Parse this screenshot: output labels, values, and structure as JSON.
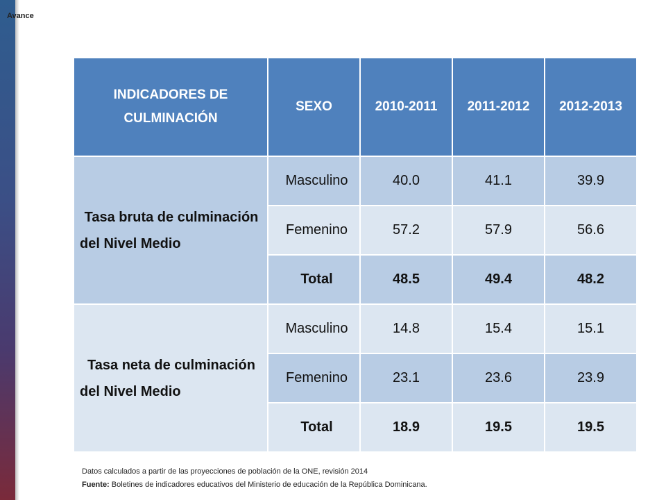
{
  "corner_label": "Avance",
  "table": {
    "headers": [
      "INDICADORES DE CULMINACIÓN",
      "SEXO",
      "2010-2011",
      "2011-2012",
      "2012-2013"
    ],
    "groups": [
      {
        "indicator": "Tasa bruta de culminación del Nivel Medio",
        "rows": [
          {
            "sexo": "Masculino",
            "values": [
              "40.0",
              "41.1",
              "39.9"
            ]
          },
          {
            "sexo": "Femenino",
            "values": [
              "57.2",
              "57.9",
              "56.6"
            ]
          },
          {
            "sexo": "Total",
            "values": [
              "48.5",
              "49.4",
              "48.2"
            ]
          }
        ]
      },
      {
        "indicator": "Tasa neta de culminación del Nivel Medio",
        "rows": [
          {
            "sexo": "Masculino",
            "values": [
              "14.8",
              "15.4",
              "15.1"
            ]
          },
          {
            "sexo": "Femenino",
            "values": [
              "23.1",
              "23.6",
              "23.9"
            ]
          },
          {
            "sexo": "Total",
            "values": [
              "18.9",
              "19.5",
              "19.5"
            ]
          }
        ]
      }
    ]
  },
  "notes": {
    "line1": "Datos calculados a partir de las proyecciones de población de la ONE, revisión 2014",
    "source_label": "Fuente:",
    "source_text": " Boletines de indicadores educativos del Ministerio de educación de la República Dominicana."
  },
  "colors": {
    "header": "#4f81bd",
    "row_dark": "#b8cce4",
    "row_light": "#dce6f1",
    "left_bar_top": "#2f5d8f",
    "left_bar_bottom": "#7a2a3a"
  }
}
